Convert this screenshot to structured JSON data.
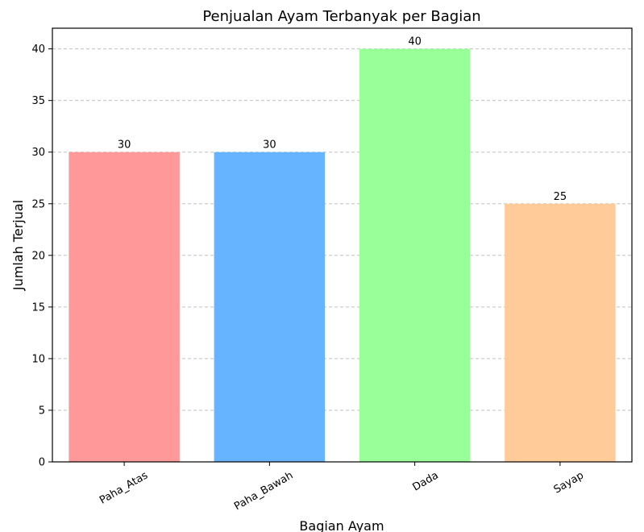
{
  "chart_data": {
    "type": "bar",
    "title": "Penjualan Ayam Terbanyak per Bagian",
    "xlabel": "Bagian Ayam",
    "ylabel": "Jumlah Terjual",
    "categories": [
      "Paha_Atas",
      "Paha_Bawah",
      "Dada",
      "Sayap"
    ],
    "values": [
      30,
      30,
      40,
      25
    ],
    "colors": [
      "#ff9999",
      "#66b3ff",
      "#99ff99",
      "#ffcc99"
    ],
    "ylim": [
      0,
      42
    ],
    "yticks": [
      0,
      5,
      10,
      15,
      20,
      25,
      30,
      35,
      40
    ],
    "grid": "y-dashed",
    "legend": "none"
  }
}
